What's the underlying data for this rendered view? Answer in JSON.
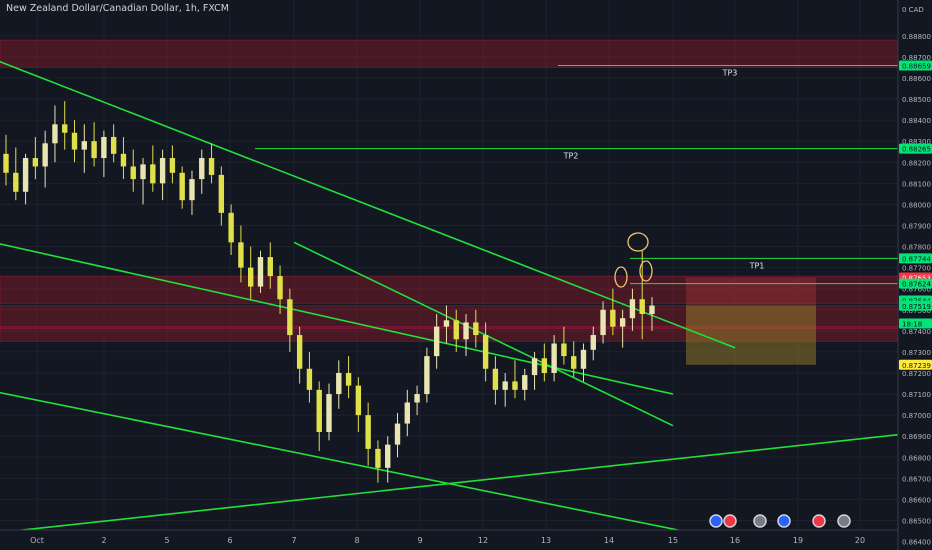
{
  "chart_data": {
    "type": "candlestick",
    "title": "New Zealand Dollar/Canadian Dollar, 1h, FXCM",
    "currency_label": "0 CAD",
    "ylim": [
      0.8636,
      0.8897
    ],
    "y_ticks": [
      "0.88800",
      "0.88700",
      "0.88600",
      "0.88500",
      "0.88400",
      "0.88300",
      "0.88200",
      "0.88100",
      "0.88000",
      "0.87900",
      "0.87800",
      "0.87700",
      "0.87600",
      "0.87500",
      "0.87400",
      "0.87300",
      "0.87200",
      "0.87100",
      "0.87000",
      "0.86900",
      "0.86800",
      "0.86700",
      "0.86600",
      "0.86500",
      "0.86400"
    ],
    "x_ticks": [
      "Oct",
      "2",
      "5",
      "6",
      "7",
      "8",
      "9",
      "12",
      "13",
      "14",
      "15",
      "16",
      "19",
      "20"
    ],
    "price_labels": [
      {
        "text": "0.88659",
        "value": 0.88659,
        "color": "#00e676"
      },
      {
        "text": "0.88265",
        "value": 0.88265,
        "color": "#00e676"
      },
      {
        "text": "0.87744",
        "value": 0.87744,
        "color": "#00e676"
      },
      {
        "text": "0.87653",
        "value": 0.87653,
        "color": "#f23645"
      },
      {
        "text": "0.87624",
        "value": 0.87624,
        "color": "#00e676"
      },
      {
        "text": "0.87544",
        "value": 0.87544,
        "color": "#00e676"
      },
      {
        "text": "0.87519",
        "value": 0.87519,
        "color": "#00e676"
      },
      {
        "text": "18:18",
        "value": 0.87435,
        "color": "#00e676"
      },
      {
        "text": "0.87239",
        "value": 0.87239,
        "color": "#ffeb3b"
      }
    ],
    "targets": [
      {
        "label": "TP3",
        "price": 0.88659
      },
      {
        "label": "TP2",
        "price": 0.88265
      },
      {
        "label": "TP1",
        "price": 0.87744
      }
    ],
    "zones": [
      {
        "from": 0.8865,
        "to": 0.8878,
        "color": "#8b1a2a"
      },
      {
        "from": 0.8753,
        "to": 0.8766,
        "color": "#8b1a2a"
      },
      {
        "from": 0.8741,
        "to": 0.8752,
        "color": "#8b1a2a"
      },
      {
        "from": 0.8735,
        "to": 0.8742,
        "color": "#8b1a2a"
      }
    ],
    "position_box": {
      "entry": 0.87519,
      "take_profit": 0.87653,
      "stop_loss": 0.87239
    },
    "trendlines": [
      {
        "from": [
          "Sep 28",
          0.8876
        ],
        "to": [
          "Oct 16",
          0.8732
        ]
      },
      {
        "from": [
          "Sep 28",
          0.8786
        ],
        "to": [
          "Oct 15",
          0.871
        ]
      },
      {
        "from": [
          "Oct 7",
          0.8782
        ],
        "to": [
          "Oct 15",
          0.8695
        ]
      },
      {
        "from": [
          "Sep 28",
          0.8715
        ],
        "to": [
          "Oct 16",
          0.864
        ]
      },
      {
        "from": [
          "Sep 28",
          0.8642
        ],
        "to": [
          "Oct 21",
          0.8692
        ]
      }
    ],
    "ohlc": [
      [
        0.8824,
        0.8833,
        0.8809,
        0.8815
      ],
      [
        0.8815,
        0.8827,
        0.8802,
        0.8806
      ],
      [
        0.8806,
        0.8824,
        0.88,
        0.8822
      ],
      [
        0.8822,
        0.8832,
        0.8812,
        0.8818
      ],
      [
        0.8818,
        0.8835,
        0.8808,
        0.8829
      ],
      [
        0.8829,
        0.8847,
        0.882,
        0.8838
      ],
      [
        0.8838,
        0.8849,
        0.8826,
        0.8834
      ],
      [
        0.8834,
        0.884,
        0.882,
        0.8826
      ],
      [
        0.8826,
        0.8838,
        0.8815,
        0.883
      ],
      [
        0.883,
        0.8839,
        0.8818,
        0.8822
      ],
      [
        0.8822,
        0.8835,
        0.8813,
        0.8832
      ],
      [
        0.8832,
        0.8838,
        0.882,
        0.8824
      ],
      [
        0.8824,
        0.8832,
        0.8812,
        0.8818
      ],
      [
        0.8818,
        0.8826,
        0.8806,
        0.8812
      ],
      [
        0.8812,
        0.8822,
        0.88,
        0.8819
      ],
      [
        0.8819,
        0.8828,
        0.8806,
        0.881
      ],
      [
        0.881,
        0.8826,
        0.8802,
        0.8822
      ],
      [
        0.8822,
        0.8828,
        0.881,
        0.8815
      ],
      [
        0.8815,
        0.8818,
        0.8798,
        0.8802
      ],
      [
        0.8802,
        0.8816,
        0.8795,
        0.8812
      ],
      [
        0.8812,
        0.8826,
        0.8805,
        0.8822
      ],
      [
        0.8822,
        0.8829,
        0.881,
        0.8814
      ],
      [
        0.8814,
        0.8818,
        0.879,
        0.8796
      ],
      [
        0.8796,
        0.88,
        0.8776,
        0.8782
      ],
      [
        0.8782,
        0.879,
        0.8763,
        0.877
      ],
      [
        0.877,
        0.878,
        0.8755,
        0.8761
      ],
      [
        0.8761,
        0.8778,
        0.8758,
        0.8775
      ],
      [
        0.8775,
        0.8782,
        0.876,
        0.8766
      ],
      [
        0.8766,
        0.8771,
        0.8748,
        0.8755
      ],
      [
        0.8755,
        0.876,
        0.873,
        0.8738
      ],
      [
        0.8738,
        0.8742,
        0.8715,
        0.8722
      ],
      [
        0.8722,
        0.873,
        0.8706,
        0.8712
      ],
      [
        0.8712,
        0.8716,
        0.8683,
        0.8692
      ],
      [
        0.8692,
        0.8715,
        0.8688,
        0.871
      ],
      [
        0.871,
        0.8726,
        0.8703,
        0.872
      ],
      [
        0.872,
        0.8728,
        0.8708,
        0.8714
      ],
      [
        0.8714,
        0.8718,
        0.8692,
        0.87
      ],
      [
        0.87,
        0.8706,
        0.8676,
        0.8684
      ],
      [
        0.8684,
        0.8688,
        0.8668,
        0.8675
      ],
      [
        0.8675,
        0.869,
        0.8668,
        0.8686
      ],
      [
        0.8686,
        0.8701,
        0.868,
        0.8696
      ],
      [
        0.8696,
        0.8712,
        0.869,
        0.8706
      ],
      [
        0.8706,
        0.8714,
        0.87,
        0.871
      ],
      [
        0.871,
        0.8732,
        0.8706,
        0.8728
      ],
      [
        0.8728,
        0.8748,
        0.8722,
        0.8742
      ],
      [
        0.8742,
        0.8752,
        0.8734,
        0.8745
      ],
      [
        0.8745,
        0.875,
        0.873,
        0.8736
      ],
      [
        0.8736,
        0.8748,
        0.8728,
        0.8744
      ],
      [
        0.8744,
        0.875,
        0.8732,
        0.8738
      ],
      [
        0.8738,
        0.8744,
        0.8716,
        0.8722
      ],
      [
        0.8722,
        0.8728,
        0.8705,
        0.8712
      ],
      [
        0.8712,
        0.872,
        0.8704,
        0.8716
      ],
      [
        0.8716,
        0.8726,
        0.8708,
        0.8712
      ],
      [
        0.8712,
        0.8722,
        0.8707,
        0.8719
      ],
      [
        0.8719,
        0.873,
        0.8712,
        0.8727
      ],
      [
        0.8727,
        0.8734,
        0.8716,
        0.872
      ],
      [
        0.872,
        0.8738,
        0.8716,
        0.8734
      ],
      [
        0.8734,
        0.8742,
        0.8724,
        0.8728
      ],
      [
        0.8728,
        0.8735,
        0.8718,
        0.8722
      ],
      [
        0.8722,
        0.8734,
        0.8716,
        0.8731
      ],
      [
        0.8731,
        0.8742,
        0.8726,
        0.8738
      ],
      [
        0.8738,
        0.8754,
        0.8734,
        0.875
      ],
      [
        0.875,
        0.876,
        0.8738,
        0.8742
      ],
      [
        0.8742,
        0.875,
        0.8732,
        0.8746
      ],
      [
        0.8746,
        0.876,
        0.874,
        0.8755
      ],
      [
        0.8755,
        0.8778,
        0.8736,
        0.8748
      ],
      [
        0.8748,
        0.8756,
        0.874,
        0.8752
      ]
    ]
  }
}
